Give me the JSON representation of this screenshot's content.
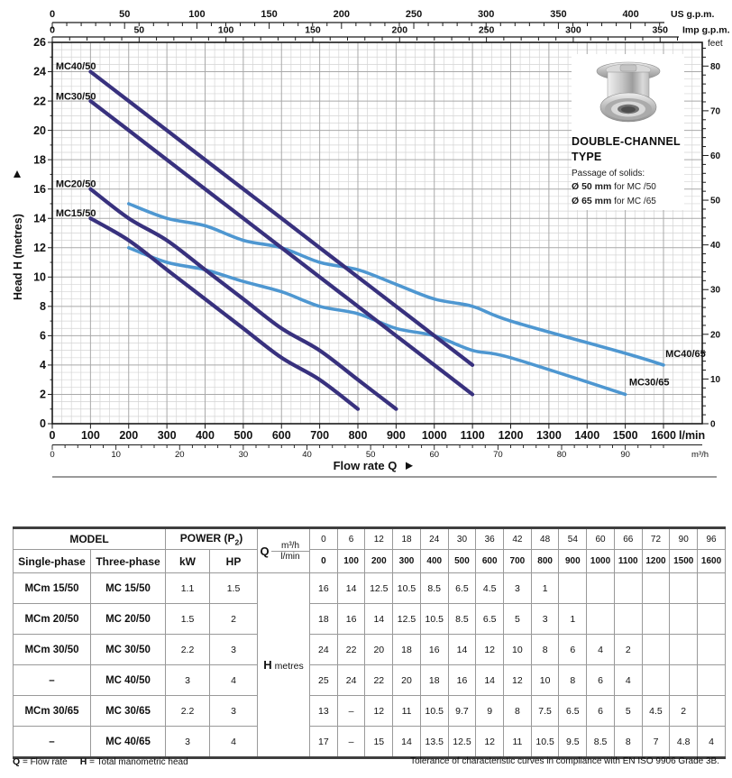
{
  "chart_data": {
    "type": "line",
    "title": "",
    "xlabel": "Flow rate Q",
    "ylabel": "Head H  (metres)",
    "grid": true,
    "xlim_lmin": [
      0,
      1700
    ],
    "ylim_m": [
      0,
      26
    ],
    "x_axes": [
      {
        "id": "usgpm",
        "unit": "US g.p.m.",
        "tick_labels": [
          0,
          50,
          100,
          150,
          200,
          250,
          300,
          350,
          400
        ]
      },
      {
        "id": "impgpm",
        "unit": "Imp g.p.m.",
        "tick_labels": [
          0,
          50,
          100,
          150,
          200,
          250,
          300,
          350
        ]
      },
      {
        "id": "lmin",
        "unit": "l/min",
        "tick_labels": [
          0,
          100,
          200,
          300,
          400,
          500,
          600,
          700,
          800,
          900,
          1000,
          1100,
          1200,
          1300,
          1400,
          1500,
          1600
        ]
      },
      {
        "id": "m3h",
        "unit": "m³/h",
        "tick_labels": [
          0,
          10,
          20,
          30,
          40,
          50,
          60,
          70,
          80,
          90
        ]
      }
    ],
    "y_axes": [
      {
        "id": "metres",
        "unit": "metres",
        "tick_labels": [
          0,
          2,
          4,
          6,
          8,
          10,
          12,
          14,
          16,
          18,
          20,
          22,
          24,
          26
        ]
      },
      {
        "id": "feet",
        "unit": "feet",
        "tick_labels": [
          0,
          10,
          20,
          30,
          40,
          50,
          60,
          70,
          80
        ]
      }
    ],
    "series": [
      {
        "name": "MC40/65",
        "color": "#4e97d1",
        "family": "65",
        "label_q": 1605,
        "label_h": 4.55,
        "points": [
          [
            200,
            15
          ],
          [
            300,
            14
          ],
          [
            400,
            13.5
          ],
          [
            500,
            12.5
          ],
          [
            600,
            12
          ],
          [
            700,
            11
          ],
          [
            800,
            10.5
          ],
          [
            900,
            9.5
          ],
          [
            1000,
            8.5
          ],
          [
            1100,
            8
          ],
          [
            1200,
            7
          ],
          [
            1500,
            4.8
          ],
          [
            1600,
            4
          ]
        ]
      },
      {
        "name": "MC30/65",
        "color": "#4e97d1",
        "family": "65",
        "label_q": 1510,
        "label_h": 2.6,
        "points": [
          [
            200,
            12
          ],
          [
            300,
            11
          ],
          [
            400,
            10.5
          ],
          [
            500,
            9.7
          ],
          [
            600,
            9
          ],
          [
            700,
            8
          ],
          [
            800,
            7.5
          ],
          [
            900,
            6.5
          ],
          [
            1000,
            6
          ],
          [
            1100,
            5
          ],
          [
            1200,
            4.5
          ],
          [
            1500,
            2
          ]
        ]
      },
      {
        "name": "MC15/50",
        "color": "#38317e",
        "family": "50",
        "label_q": 9,
        "label_h": 14.15,
        "points": [
          [
            100,
            14
          ],
          [
            200,
            12.5
          ],
          [
            300,
            10.5
          ],
          [
            400,
            8.5
          ],
          [
            500,
            6.5
          ],
          [
            600,
            4.5
          ],
          [
            700,
            3
          ],
          [
            800,
            1
          ]
        ]
      },
      {
        "name": "MC20/50",
        "color": "#38317e",
        "family": "50",
        "label_q": 9,
        "label_h": 16.15,
        "points": [
          [
            100,
            16
          ],
          [
            200,
            14
          ],
          [
            300,
            12.5
          ],
          [
            400,
            10.5
          ],
          [
            500,
            8.5
          ],
          [
            600,
            6.5
          ],
          [
            700,
            5
          ],
          [
            800,
            3
          ],
          [
            900,
            1
          ]
        ]
      },
      {
        "name": "MC30/50",
        "color": "#38317e",
        "family": "50",
        "label_q": 9,
        "label_h": 22.1,
        "points": [
          [
            100,
            22
          ],
          [
            200,
            20
          ],
          [
            300,
            18
          ],
          [
            400,
            16
          ],
          [
            500,
            14
          ],
          [
            600,
            12
          ],
          [
            700,
            10
          ],
          [
            800,
            8
          ],
          [
            900,
            6
          ],
          [
            1000,
            4
          ],
          [
            1100,
            2
          ]
        ]
      },
      {
        "name": "MC40/50",
        "color": "#38317e",
        "family": "50",
        "label_q": 9,
        "label_h": 24.15,
        "points": [
          [
            100,
            24
          ],
          [
            200,
            22
          ],
          [
            300,
            20
          ],
          [
            400,
            18
          ],
          [
            500,
            16
          ],
          [
            600,
            14
          ],
          [
            700,
            12
          ],
          [
            800,
            10
          ],
          [
            900,
            8
          ],
          [
            1000,
            6
          ],
          [
            1100,
            4
          ]
        ]
      }
    ],
    "label_color": "#23205f"
  },
  "info_box": {
    "title_line1": "DOUBLE-CHANNEL",
    "title_line2": "TYPE",
    "passage": "Passage of solids:",
    "solids": [
      {
        "size": "Ø 50 mm",
        "text": " for MC /50"
      },
      {
        "size": "Ø 65 mm",
        "text": " for MC /65"
      }
    ]
  },
  "table": {
    "header": {
      "model": "MODEL",
      "single_phase": "Single-phase",
      "three_phase": "Three-phase",
      "power": "POWER (P2)",
      "kw": "kW",
      "hp": "HP",
      "q": "Q",
      "m3h": "m³/h",
      "lmin": "l/min",
      "h_label": "H",
      "h_unit": "metres",
      "q_m3h": [
        "0",
        "6",
        "12",
        "18",
        "24",
        "30",
        "36",
        "42",
        "48",
        "54",
        "60",
        "66",
        "72",
        "90",
        "96"
      ],
      "q_lmin": [
        "0",
        "100",
        "200",
        "300",
        "400",
        "500",
        "600",
        "700",
        "800",
        "900",
        "1000",
        "1100",
        "1200",
        "1500",
        "1600"
      ]
    },
    "rows": [
      {
        "single": "MCm 15/50",
        "three": "MC 15/50",
        "kw": "1.1",
        "hp": "1.5",
        "h": [
          "16",
          "14",
          "12.5",
          "10.5",
          "8.5",
          "6.5",
          "4.5",
          "3",
          "1",
          "",
          "",
          "",
          "",
          "",
          ""
        ]
      },
      {
        "single": "MCm 20/50",
        "three": "MC 20/50",
        "kw": "1.5",
        "hp": "2",
        "h": [
          "18",
          "16",
          "14",
          "12.5",
          "10.5",
          "8.5",
          "6.5",
          "5",
          "3",
          "1",
          "",
          "",
          "",
          "",
          ""
        ]
      },
      {
        "single": "MCm 30/50",
        "three": "MC 30/50",
        "kw": "2.2",
        "hp": "3",
        "h": [
          "24",
          "22",
          "20",
          "18",
          "16",
          "14",
          "12",
          "10",
          "8",
          "6",
          "4",
          "2",
          "",
          "",
          ""
        ]
      },
      {
        "single": "–",
        "three": "MC 40/50",
        "kw": "3",
        "hp": "4",
        "h": [
          "25",
          "24",
          "22",
          "20",
          "18",
          "16",
          "14",
          "12",
          "10",
          "8",
          "6",
          "4",
          "",
          "",
          ""
        ]
      },
      {
        "single": "MCm 30/65",
        "three": "MC 30/65",
        "kw": "2.2",
        "hp": "3",
        "h": [
          "13",
          "–",
          "12",
          "11",
          "10.5",
          "9.7",
          "9",
          "8",
          "7.5",
          "6.5",
          "6",
          "5",
          "4.5",
          "2",
          ""
        ]
      },
      {
        "single": "–",
        "three": "MC 40/65",
        "kw": "3",
        "hp": "4",
        "h": [
          "17",
          "–",
          "15",
          "14",
          "13.5",
          "12.5",
          "12",
          "11",
          "10.5",
          "9.5",
          "8.5",
          "8",
          "7",
          "4.8",
          "4"
        ]
      }
    ]
  },
  "footer": {
    "legend": [
      {
        "sym": "Q",
        "rest": " = Flow rate"
      },
      {
        "sym": "H",
        "rest": " = Total manometric head"
      }
    ],
    "right": "Tolerance of characteristic curves in compliance with EN ISO 9906 Grade 3B."
  }
}
